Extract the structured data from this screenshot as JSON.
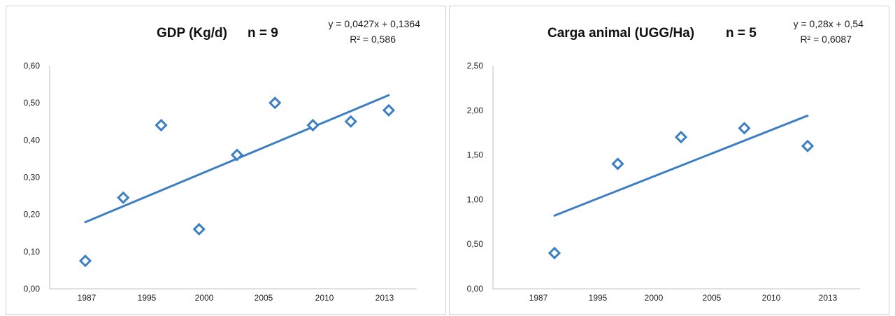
{
  "chart_data": [
    {
      "type": "scatter",
      "title": "GDP (Kg/d)",
      "n_label": "n = 9",
      "trend": {
        "equation": "y = 0,0427x + 0,1364",
        "r2": "R² = 0,586",
        "slope": 0.0427,
        "intercept": 0.1364
      },
      "x_tick_labels": [
        "1987",
        "1995",
        "2000",
        "2005",
        "2010",
        "2013"
      ],
      "y_tick_labels": [
        "0,00",
        "0,10",
        "0,20",
        "0,30",
        "0,40",
        "0,50",
        "0,60"
      ],
      "ylim": [
        0,
        0.6
      ],
      "x_index_range": [
        0,
        8
      ],
      "points": [
        {
          "i": 1,
          "y": 0.075
        },
        {
          "i": 2,
          "y": 0.245
        },
        {
          "i": 3,
          "y": 0.44
        },
        {
          "i": 4,
          "y": 0.16
        },
        {
          "i": 5,
          "y": 0.36
        },
        {
          "i": 6,
          "y": 0.5
        },
        {
          "i": 7,
          "y": 0.44
        },
        {
          "i": 8,
          "y": 0.45
        },
        {
          "i": 9,
          "y": 0.48
        }
      ],
      "color": "#3d7fc4"
    },
    {
      "type": "scatter",
      "title": "Carga animal  (UGG/Ha)",
      "n_label": "n = 5",
      "trend": {
        "equation": "y = 0,28x + 0,54",
        "r2": "R² = 0,6087",
        "slope": 0.28,
        "intercept": 0.54
      },
      "x_tick_labels": [
        "1987",
        "1995",
        "2000",
        "2005",
        "2010",
        "2013"
      ],
      "y_tick_labels": [
        "0,00",
        "0,50",
        "1,00",
        "1,50",
        "2,00",
        "2,50"
      ],
      "ylim": [
        0,
        2.5
      ],
      "x_index_range": [
        0,
        5
      ],
      "points": [
        {
          "i": 1,
          "y": 0.4
        },
        {
          "i": 2,
          "y": 1.4
        },
        {
          "i": 3,
          "y": 1.7
        },
        {
          "i": 4,
          "y": 1.8
        },
        {
          "i": 5,
          "y": 1.6
        }
      ],
      "color": "#3d7fc4"
    }
  ]
}
